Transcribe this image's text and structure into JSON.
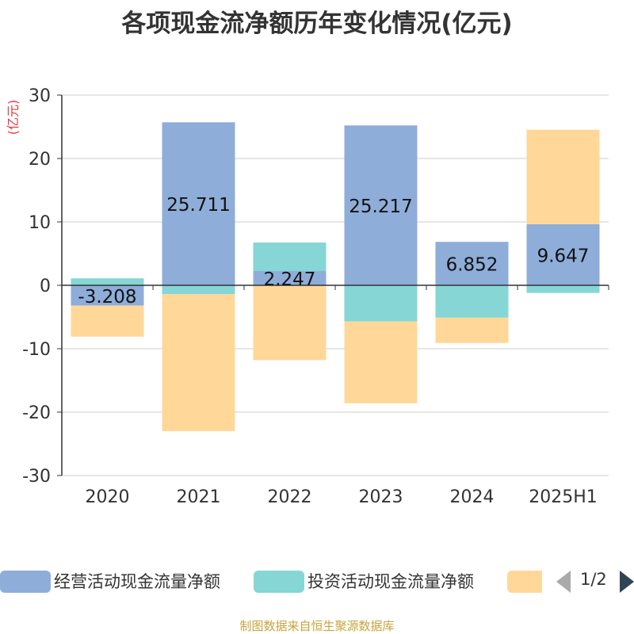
{
  "chart_data": {
    "type": "bar",
    "stacked": true,
    "title": "各项现金流净额历年变化情况(亿元)",
    "ylabel": "(亿元)",
    "ylim": [
      -30,
      30
    ],
    "yticks": [
      30,
      20,
      10,
      0,
      -10,
      -20,
      -30
    ],
    "grid": true,
    "categories": [
      "2020",
      "2021",
      "2022",
      "2023",
      "2024",
      "2025H1"
    ],
    "series": [
      {
        "name": "经营活动现金流量净额",
        "color": "#8eadd9",
        "values": [
          -3.208,
          25.711,
          2.247,
          25.217,
          6.852,
          9.647
        ],
        "labels": [
          "-3.208",
          "25.711",
          "2.247",
          "25.217",
          "6.852",
          "9.647"
        ]
      },
      {
        "name": "投资活动现金流量净额",
        "color": "#86d6d6",
        "values": [
          1.1,
          -1.4,
          4.5,
          -5.7,
          -5.1,
          -1.2
        ]
      },
      {
        "color": "#ffd899",
        "values": [
          -4.9,
          -21.6,
          -11.8,
          -12.9,
          -4.0,
          14.9
        ]
      }
    ],
    "legend": {
      "position": "bottom",
      "page": "1/2"
    }
  },
  "footer": {
    "source": "制图数据来自恒生聚源数据库"
  },
  "colors": {
    "axis": "#333333",
    "grid": "#cccccc",
    "ylabel": "#e03c3c",
    "source": "#c8a43a"
  }
}
